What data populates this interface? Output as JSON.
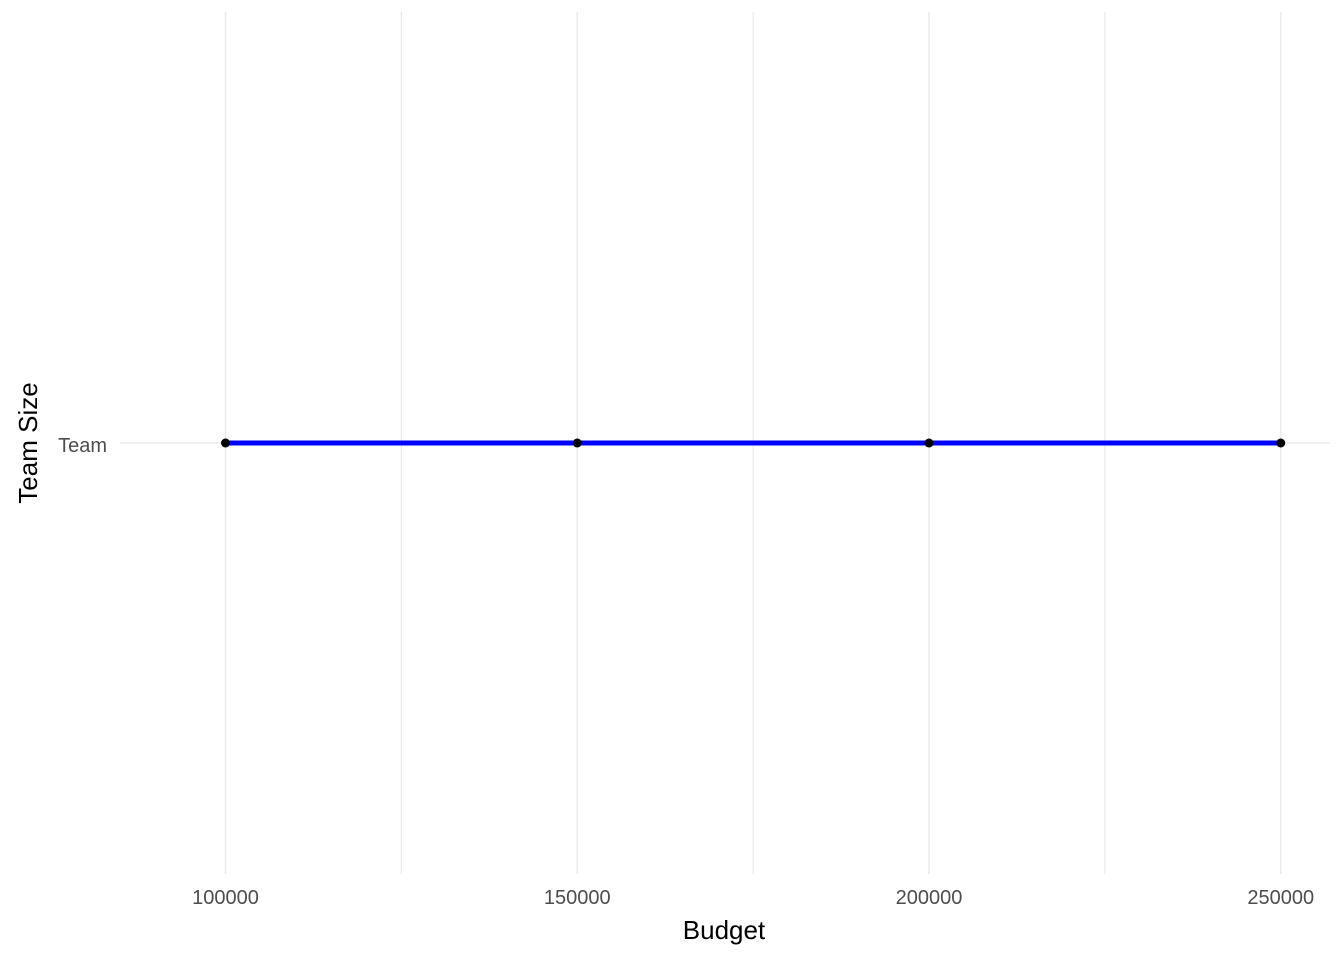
{
  "chart_data": {
    "type": "line",
    "title": "",
    "xlabel": "Budget",
    "ylabel": "Team Size",
    "categories_y": [
      "Team"
    ],
    "x_ticks": [
      100000,
      150000,
      200000,
      250000
    ],
    "x_tick_labels": [
      "100000",
      "150000",
      "200000",
      "250000"
    ],
    "xlim": [
      85000,
      257000
    ],
    "grid": true,
    "legend": "none",
    "series": [
      {
        "y": "Team",
        "x": [
          100000,
          150000,
          200000,
          250000
        ],
        "line_color": "#0000ff",
        "point_color": "#000000"
      }
    ]
  }
}
